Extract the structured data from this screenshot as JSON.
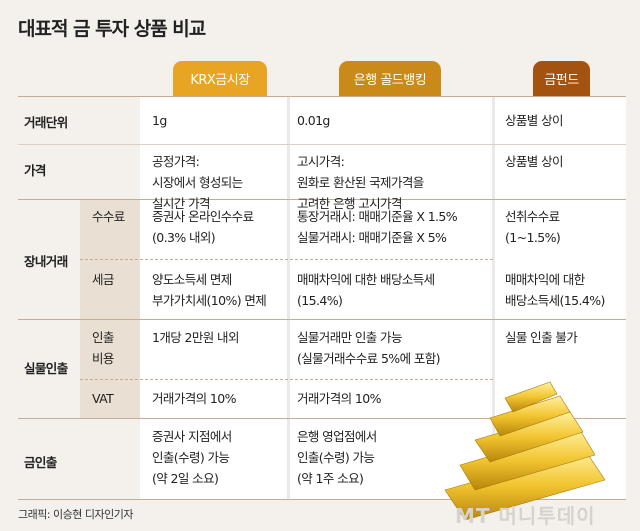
{
  "title": "대표적 금 투자 상품 비교",
  "columns": [
    {
      "label": "KRX금시장",
      "color": "#e8a524"
    },
    {
      "label": "은행 골드뱅킹",
      "color": "#c98a1a"
    },
    {
      "label": "금펀드",
      "color": "#a4520f"
    }
  ],
  "rows": {
    "unit": {
      "label": "거래단위",
      "krx": "1g",
      "bank": "0.01g",
      "fund": "상품별 상이"
    },
    "price": {
      "label": "가격",
      "krx": "공정가격:\n시장에서 형성되는\n실시간 가격",
      "bank": "고시가격:\n원화로 환산된 국제가격을\n고려한 은행 고시가격",
      "fund": "상품별 상이"
    },
    "exchange": {
      "label": "장내거래",
      "fee": {
        "label": "수수료",
        "krx": "증권사 온라인수수료\n(0.3% 내외)",
        "bank": "통장거래시: 매매기준율 X 1.5%\n실물거래시: 매매기준율 X 5%",
        "fund": "선취수수료\n(1~1.5%)"
      },
      "tax": {
        "label": "세금",
        "krx": "양도소득세 면제\n부가가치세(10%) 면제",
        "bank": "매매차익에 대한 배당소득세\n(15.4%)",
        "fund": "매매차익에 대한\n배당소득세(15.4%)"
      }
    },
    "withdraw": {
      "label": "실물인출",
      "cost": {
        "label": "인출\n비용",
        "krx": "1개당 2만원 내외",
        "bank": "실물거래만 인출 가능\n(실물거래수수료 5%에 포함)",
        "fund": "실물 인출 불가"
      },
      "vat": {
        "label": "VAT",
        "krx": "거래가격의 10%",
        "bank": "거래가격의 10%"
      }
    },
    "gold": {
      "label": "금인출",
      "krx": "증권사 지점에서\n인출(수령) 가능\n(약 2일 소요)",
      "bank": "은행 영업점에서\n인출(수령) 가능\n(약 1주 소요)"
    }
  },
  "credit": "그래픽: 이승현 디자인기자",
  "watermark": "MT 머니투데이"
}
